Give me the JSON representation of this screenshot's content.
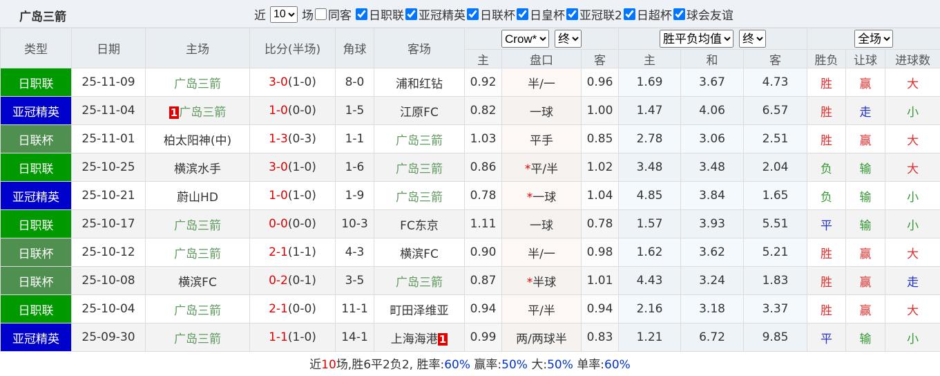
{
  "header": {
    "title": "广岛三箭",
    "filter": {
      "prefix": "近",
      "count": "10",
      "suffix": "场",
      "same_venue": {
        "label": "同客",
        "checked": false
      },
      "leagues": [
        {
          "label": "日职联",
          "checked": true
        },
        {
          "label": "亚冠精英",
          "checked": true
        },
        {
          "label": "日联杯",
          "checked": true
        },
        {
          "label": "日皇杯",
          "checked": true
        },
        {
          "label": "亚冠联2",
          "checked": true
        },
        {
          "label": "日超杯",
          "checked": true
        },
        {
          "label": "球会友谊",
          "checked": true
        }
      ]
    }
  },
  "table": {
    "columns": [
      "类型",
      "日期",
      "主场",
      "比分(半场)",
      "角球",
      "客场"
    ],
    "odds_group": {
      "company": "Crow*",
      "stage": "终",
      "sub": [
        "主",
        "盘口",
        "客"
      ]
    },
    "avg_group": {
      "kind": "胜平负均值",
      "stage": "终",
      "sub": [
        "主",
        "和",
        "客"
      ]
    },
    "result_group": {
      "scope": "全场",
      "sub": [
        "胜负",
        "让球",
        "进球数"
      ]
    },
    "score_color": "#e00000",
    "highlight_color": "#5f9a5f",
    "mark_color": "#e00000",
    "rows": [
      {
        "type": {
          "text": "日职联",
          "color": "#009900"
        },
        "date": "25-11-09",
        "home": "广岛三箭",
        "score": "3-0",
        "half": "(1-0)",
        "corners": "8-0",
        "away": "浦和红钻",
        "odds_home": "0.92",
        "handicap": "半/一",
        "odds_away": "0.96",
        "avg_home": "1.69",
        "avg_draw": "3.67",
        "avg_away": "4.73",
        "result": {
          "text": "胜",
          "color": "#e03030"
        },
        "handicap_result": {
          "text": "赢",
          "color": "#e03030"
        },
        "goals_result": {
          "text": "大",
          "color": "#e03030"
        }
      },
      {
        "type": {
          "text": "亚冠精英",
          "color": "#0000cc"
        },
        "date": "25-11-04",
        "home_red": "1",
        "home": "广岛三箭",
        "score": "1-0",
        "half": "(0-0)",
        "corners": "1-5",
        "away": "江原FC",
        "odds_home": "0.82",
        "handicap": "一球",
        "odds_away": "1.00",
        "avg_home": "1.47",
        "avg_draw": "4.06",
        "avg_away": "6.57",
        "result": {
          "text": "胜",
          "color": "#e03030"
        },
        "handicap_result": {
          "text": "走",
          "color": "#2233cc"
        },
        "goals_result": {
          "text": "小",
          "color": "#339933"
        }
      },
      {
        "type": {
          "text": "日联杯",
          "color": "#4f8f4f"
        },
        "date": "25-11-01",
        "home": "柏太阳神(中)",
        "score": "1-3",
        "half": "(0-3)",
        "corners": "1-1",
        "away": "广岛三箭",
        "odds_home": "1.03",
        "handicap": "平手",
        "odds_away": "0.85",
        "avg_home": "2.78",
        "avg_draw": "3.06",
        "avg_away": "2.51",
        "result": {
          "text": "胜",
          "color": "#e03030"
        },
        "handicap_result": {
          "text": "赢",
          "color": "#e03030"
        },
        "goals_result": {
          "text": "大",
          "color": "#e03030"
        }
      },
      {
        "type": {
          "text": "日职联",
          "color": "#009900"
        },
        "date": "25-10-25",
        "home": "横滨水手",
        "score": "3-0",
        "half": "(1-0)",
        "corners": "1-6",
        "away": "广岛三箭",
        "odds_home": "0.86",
        "handicap_mark": "*",
        "handicap": "平/半",
        "odds_away": "1.02",
        "avg_home": "3.48",
        "avg_draw": "3.48",
        "avg_away": "2.04",
        "result": {
          "text": "负",
          "color": "#339933"
        },
        "handicap_result": {
          "text": "输",
          "color": "#339933"
        },
        "goals_result": {
          "text": "大",
          "color": "#e03030"
        }
      },
      {
        "type": {
          "text": "亚冠精英",
          "color": "#0000cc"
        },
        "date": "25-10-21",
        "home": "蔚山HD",
        "score": "1-0",
        "half": "(1-0)",
        "corners": "1-9",
        "away": "广岛三箭",
        "odds_home": "0.78",
        "handicap_mark": "*",
        "handicap": "一球",
        "odds_away": "1.04",
        "avg_home": "4.85",
        "avg_draw": "3.84",
        "avg_away": "1.65",
        "result": {
          "text": "负",
          "color": "#339933"
        },
        "handicap_result": {
          "text": "输",
          "color": "#339933"
        },
        "goals_result": {
          "text": "小",
          "color": "#339933"
        }
      },
      {
        "type": {
          "text": "日职联",
          "color": "#009900"
        },
        "date": "25-10-17",
        "home": "广岛三箭",
        "score": "0-0",
        "half": "(0-0)",
        "corners": "10-3",
        "away": "FC东京",
        "odds_home": "1.11",
        "handicap": "一球",
        "odds_away": "0.78",
        "avg_home": "1.57",
        "avg_draw": "3.93",
        "avg_away": "5.51",
        "result": {
          "text": "平",
          "color": "#2233cc"
        },
        "handicap_result": {
          "text": "输",
          "color": "#339933"
        },
        "goals_result": {
          "text": "小",
          "color": "#339933"
        }
      },
      {
        "type": {
          "text": "日联杯",
          "color": "#4f8f4f"
        },
        "date": "25-10-12",
        "home": "广岛三箭",
        "score": "2-1",
        "half": "(1-1)",
        "corners": "4-3",
        "away": "横滨FC",
        "odds_home": "0.90",
        "handicap": "半/一",
        "odds_away": "0.98",
        "avg_home": "1.62",
        "avg_draw": "3.62",
        "avg_away": "5.21",
        "result": {
          "text": "胜",
          "color": "#e03030"
        },
        "handicap_result": {
          "text": "赢",
          "color": "#e03030"
        },
        "goals_result": {
          "text": "大",
          "color": "#e03030"
        }
      },
      {
        "type": {
          "text": "日联杯",
          "color": "#4f8f4f"
        },
        "date": "25-10-08",
        "home": "横滨FC",
        "score": "0-2",
        "half": "(0-1)",
        "corners": "3-5",
        "away": "广岛三箭",
        "odds_home": "0.87",
        "handicap_mark": "*",
        "handicap": "半球",
        "odds_away": "1.01",
        "avg_home": "4.43",
        "avg_draw": "3.24",
        "avg_away": "1.83",
        "result": {
          "text": "胜",
          "color": "#e03030"
        },
        "handicap_result": {
          "text": "赢",
          "color": "#e03030"
        },
        "goals_result": {
          "text": "走",
          "color": "#2233cc"
        }
      },
      {
        "type": {
          "text": "日职联",
          "color": "#009900"
        },
        "date": "25-10-04",
        "home": "广岛三箭",
        "score": "2-1",
        "half": "(0-0)",
        "corners": "11-1",
        "away": "町田泽维亚",
        "odds_home": "0.94",
        "handicap": "平/半",
        "odds_away": "0.94",
        "avg_home": "2.16",
        "avg_draw": "3.18",
        "avg_away": "3.37",
        "result": {
          "text": "胜",
          "color": "#e03030"
        },
        "handicap_result": {
          "text": "赢",
          "color": "#e03030"
        },
        "goals_result": {
          "text": "大",
          "color": "#e03030"
        }
      },
      {
        "type": {
          "text": "亚冠精英",
          "color": "#0000cc"
        },
        "date": "25-09-30",
        "home": "广岛三箭",
        "score": "1-1",
        "half": "(1-0)",
        "corners": "14-1",
        "away": "上海海港",
        "away_red": "1",
        "odds_home": "0.99",
        "handicap": "两/两球半",
        "odds_away": "0.83",
        "avg_home": "1.21",
        "avg_draw": "6.72",
        "avg_away": "9.85",
        "result": {
          "text": "平",
          "color": "#2233cc"
        },
        "handicap_result": {
          "text": "输",
          "color": "#339933"
        },
        "goals_result": {
          "text": "小",
          "color": "#339933"
        }
      }
    ]
  },
  "summary": [
    {
      "text": "近",
      "color": "#333333"
    },
    {
      "text": "10",
      "color": "#e00000"
    },
    {
      "text": "场,胜6平2负2, 胜率:",
      "color": "#333333"
    },
    {
      "text": "60%",
      "color": "#0033cc"
    },
    {
      "text": " 赢率:",
      "color": "#333333"
    },
    {
      "text": "50%",
      "color": "#0033cc"
    },
    {
      "text": " 大:",
      "color": "#333333"
    },
    {
      "text": "50%",
      "color": "#0033cc"
    },
    {
      "text": " 单率:",
      "color": "#333333"
    },
    {
      "text": "60%",
      "color": "#0033cc"
    }
  ]
}
